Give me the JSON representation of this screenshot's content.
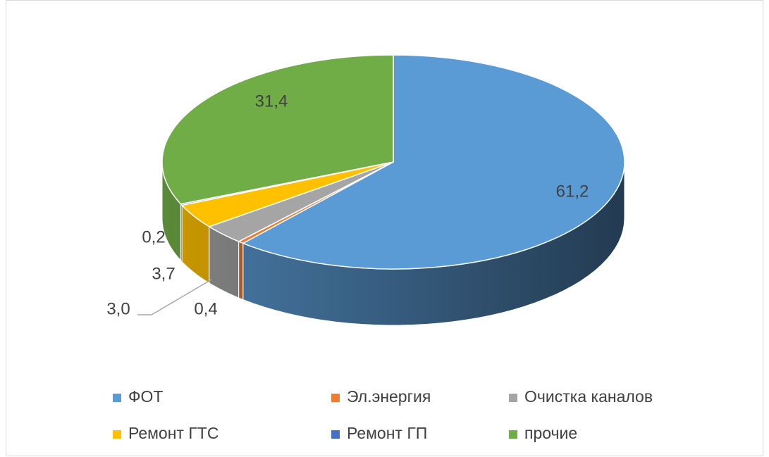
{
  "chart_data": {
    "type": "pie",
    "categories": [
      "ФОТ",
      "Эл.энергия",
      "Очистка каналов",
      "Ремонт ГТС",
      "Ремонт ГП",
      "прочие"
    ],
    "values": [
      61.2,
      0.4,
      3.0,
      3.7,
      0.2,
      31.4
    ],
    "value_labels": [
      "61,2",
      "0,4",
      "3,0",
      "3,7",
      "0,2",
      "31,4"
    ],
    "colors": [
      "#5b9bd5",
      "#ed7d31",
      "#a5a5a5",
      "#ffc000",
      "#4472c4",
      "#70ad47"
    ],
    "legend": "bottom"
  }
}
